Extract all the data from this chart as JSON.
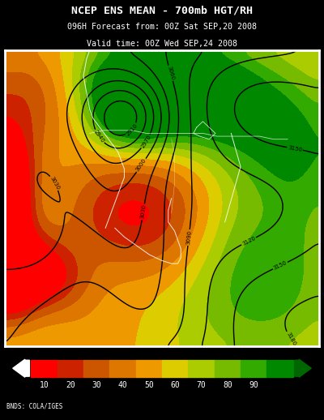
{
  "title_line1": "NCEP ENS MEAN - 700mb HGT/RH",
  "title_line2": "096H Forecast from: 00Z Sat SEP,20 2008",
  "title_line3": "Valid time: 00Z Wed SEP,24 2008",
  "colorbar_ticks": [
    10,
    20,
    30,
    40,
    50,
    60,
    70,
    80,
    90
  ],
  "colorbar_colors": [
    "#ff0000",
    "#cc2200",
    "#cc5500",
    "#dd7700",
    "#ee9900",
    "#ddcc00",
    "#aacc00",
    "#77bb00",
    "#33aa00",
    "#008800"
  ],
  "colorbar_bounds": [
    0,
    10,
    20,
    30,
    40,
    50,
    60,
    70,
    80,
    90,
    100
  ],
  "background_color": "#000000",
  "map_border_color": "#ffffff",
  "text_color": "#ffffff",
  "credit_text": "BNDS: COLA/IGES",
  "figsize": [
    4.0,
    5.18
  ],
  "dpi": 100
}
